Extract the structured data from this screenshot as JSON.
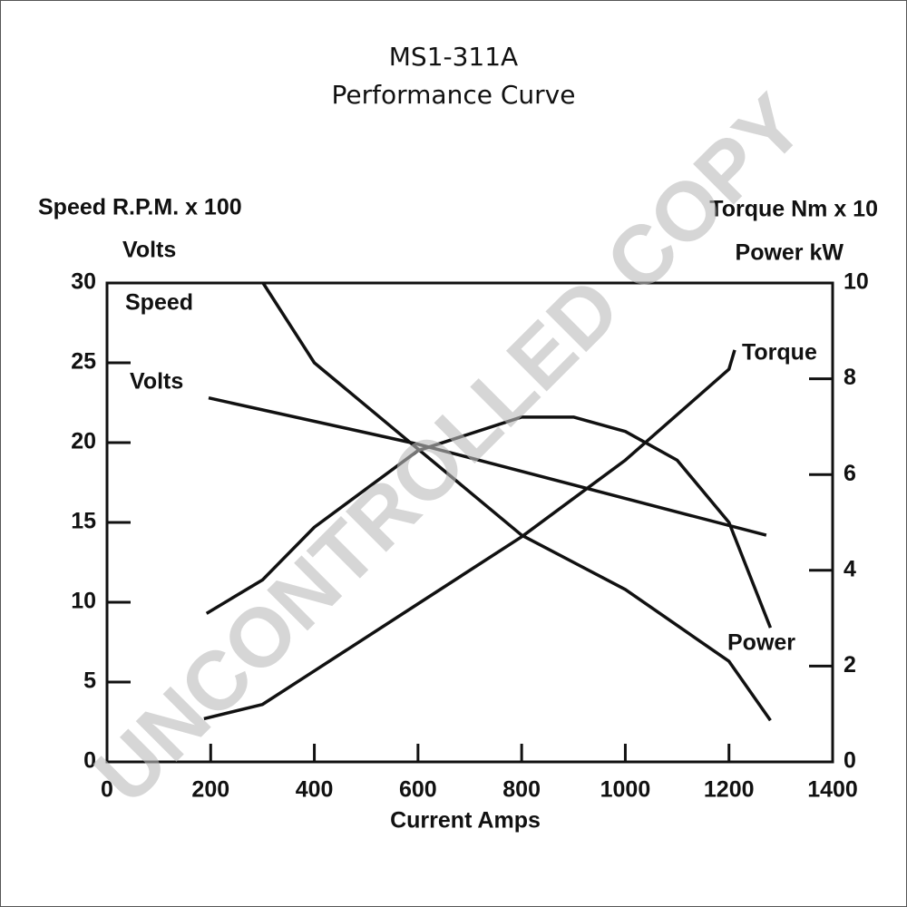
{
  "chart_data": {
    "type": "line",
    "title": "MS1-311A",
    "subtitle": "Performance Curve",
    "y_label": "Speed R.P.M. x 100",
    "y_label_2": "Volts",
    "y2_label": "Torque Nm x 10",
    "y2_label_2": "Power kW",
    "x_label": "Current Amps",
    "watermark": "UNCONTROLLED COPY",
    "xlim": [
      0,
      1400
    ],
    "xticks": [
      0,
      200,
      400,
      600,
      800,
      1000,
      1200,
      1400
    ],
    "ylim": [
      0,
      30
    ],
    "yticks": [
      0,
      5,
      10,
      15,
      20,
      25,
      30
    ],
    "y2lim": [
      0,
      10
    ],
    "y2ticks": [
      0,
      2,
      4,
      6,
      8,
      10
    ],
    "series": [
      {
        "name": "Speed",
        "color": "#111111",
        "axis": "y",
        "x": [
          301,
          400,
          600,
          800,
          1000,
          1200,
          1280
        ],
        "values": [
          30,
          25,
          19.6,
          14.2,
          10.8,
          6.3,
          2.6
        ]
      },
      {
        "name": "Volts",
        "color": "#111111",
        "axis": "y",
        "x": [
          196,
          600,
          1000,
          1272
        ],
        "values": [
          22.8,
          19.9,
          16.5,
          14.2
        ]
      },
      {
        "name": "Torque",
        "color": "#111111",
        "axis": "y2",
        "x": [
          187,
          300,
          400,
          600,
          800,
          1000,
          1200,
          1211
        ],
        "values": [
          0.9,
          1.2,
          1.9,
          3.3,
          4.7,
          6.3,
          8.2,
          8.6
        ]
      },
      {
        "name": "Power",
        "color": "#111111",
        "axis": "y2",
        "x": [
          192,
          300,
          400,
          600,
          800,
          900,
          1000,
          1100,
          1200,
          1280
        ],
        "values": [
          3.1,
          3.8,
          4.9,
          6.5,
          7.2,
          7.2,
          6.9,
          6.3,
          5.0,
          2.8
        ]
      }
    ]
  }
}
